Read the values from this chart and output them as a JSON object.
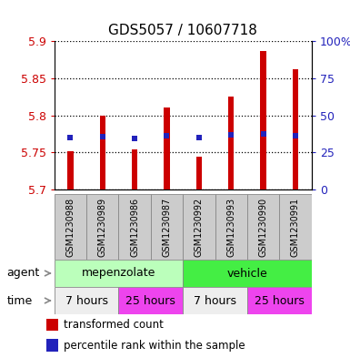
{
  "title": "GDS5057 / 10607718",
  "samples": [
    "GSM1230988",
    "GSM1230989",
    "GSM1230986",
    "GSM1230987",
    "GSM1230992",
    "GSM1230993",
    "GSM1230990",
    "GSM1230991"
  ],
  "bar_bottoms": [
    5.7,
    5.7,
    5.7,
    5.7,
    5.7,
    5.7,
    5.7,
    5.7
  ],
  "bar_tops": [
    5.751,
    5.8,
    5.754,
    5.81,
    5.744,
    5.825,
    5.887,
    5.862
  ],
  "percentile_values": [
    5.77,
    5.771,
    5.769,
    5.772,
    5.77,
    5.774,
    5.775,
    5.773
  ],
  "ylim": [
    5.7,
    5.9
  ],
  "yticks_left": [
    5.7,
    5.75,
    5.8,
    5.85,
    5.9
  ],
  "yticks_right": [
    0,
    25,
    50,
    75,
    100
  ],
  "bar_color": "#cc0000",
  "blue_color": "#2222bb",
  "agent_groups": [
    {
      "label": "mepenzolate",
      "start": 0,
      "end": 4,
      "color": "#bbffbb"
    },
    {
      "label": "vehicle",
      "start": 4,
      "end": 8,
      "color": "#44ee44"
    }
  ],
  "time_groups": [
    {
      "label": "7 hours",
      "start": 0,
      "end": 2,
      "color": "#eeeeee"
    },
    {
      "label": "25 hours",
      "start": 2,
      "end": 4,
      "color": "#ee44ee"
    },
    {
      "label": "7 hours",
      "start": 4,
      "end": 6,
      "color": "#eeeeee"
    },
    {
      "label": "25 hours",
      "start": 6,
      "end": 8,
      "color": "#ee44ee"
    }
  ],
  "legend_items": [
    {
      "color": "#cc0000",
      "label": "transformed count"
    },
    {
      "color": "#2222bb",
      "label": "percentile rank within the sample"
    }
  ],
  "agent_label": "agent",
  "time_label": "time",
  "background_color": "#ffffff",
  "plot_bg": "#ffffff",
  "tick_label_color_left": "#cc0000",
  "tick_label_color_right": "#2222bb",
  "sample_box_color": "#cccccc",
  "bar_width": 0.18
}
